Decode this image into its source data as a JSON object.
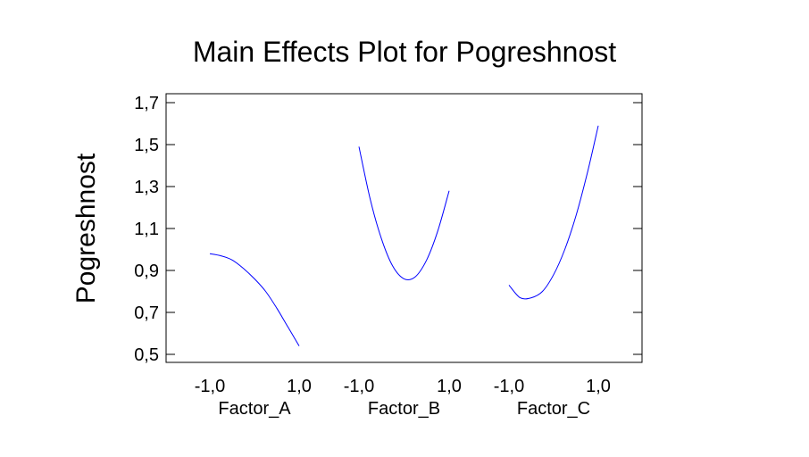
{
  "chart_data": {
    "type": "line",
    "title": "Main Effects Plot for Pogreshnost",
    "ylabel": "Pogreshnost",
    "ylim": [
      0.46,
      1.74
    ],
    "yticks": [
      0.5,
      0.7,
      0.9,
      1.1,
      1.3,
      1.5,
      1.7
    ],
    "ytick_labels": [
      "0,5",
      "0,7",
      "0,9",
      "1,1",
      "1,3",
      "1,5",
      "1,7"
    ],
    "x_tick_labels": [
      "-1,0",
      "1,0"
    ],
    "grid": false,
    "panels": [
      {
        "name": "Factor_A",
        "x": [
          -1.0,
          -0.75,
          -0.5,
          -0.25,
          0.0,
          0.25,
          0.5,
          0.75,
          1.0
        ],
        "values": [
          0.98,
          0.97,
          0.95,
          0.91,
          0.86,
          0.8,
          0.72,
          0.63,
          0.54
        ]
      },
      {
        "name": "Factor_B",
        "x": [
          -1.0,
          -0.75,
          -0.5,
          -0.25,
          0.0,
          0.25,
          0.5,
          0.75,
          1.0
        ],
        "values": [
          1.49,
          1.24,
          1.05,
          0.92,
          0.86,
          0.87,
          0.95,
          1.09,
          1.28
        ]
      },
      {
        "name": "Factor_C",
        "x": [
          -1.0,
          -0.75,
          -0.5,
          -0.25,
          0.0,
          0.25,
          0.5,
          0.75,
          1.0
        ],
        "values": [
          0.83,
          0.77,
          0.77,
          0.8,
          0.88,
          1.0,
          1.16,
          1.36,
          1.59
        ]
      }
    ]
  }
}
